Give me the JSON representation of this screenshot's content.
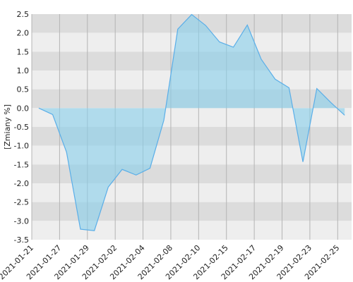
{
  "chart_data": {
    "type": "area",
    "y_label": "[Zmiany %]",
    "categories": [
      "2021-01-21",
      null,
      "2021-01-27",
      null,
      "2021-01-29",
      null,
      "2021-02-02",
      null,
      "2021-02-04",
      null,
      "2021-02-08",
      null,
      "2021-02-10",
      null,
      "2021-02-15",
      null,
      "2021-02-17",
      null,
      "2021-02-19",
      null,
      "2021-02-23",
      null,
      "2021-02-25"
    ],
    "values": [
      0.0,
      -0.17,
      -1.17,
      -3.22,
      -3.26,
      -2.1,
      -1.63,
      -1.78,
      -1.6,
      -0.32,
      2.1,
      2.49,
      2.2,
      1.76,
      1.62,
      2.21,
      1.3,
      0.77,
      0.54,
      -1.43,
      0.52,
      0.15,
      -0.19
    ],
    "color": "#5aaee8",
    "ylim": [
      -3.5,
      2.5
    ],
    "yticks": [
      {
        "value": 2.5,
        "label": "2.5"
      },
      {
        "value": 2.0,
        "label": "2.0"
      },
      {
        "value": 1.5,
        "label": "1.5"
      },
      {
        "value": 1.0,
        "label": "1.0"
      },
      {
        "value": 0.5,
        "label": "0.5"
      },
      {
        "value": 0.0,
        "label": "0.0"
      },
      {
        "value": -0.5,
        "label": "-0.5"
      },
      {
        "value": -1.0,
        "label": "-1.0"
      },
      {
        "value": -1.5,
        "label": "-1.5"
      },
      {
        "value": -2.0,
        "label": "-2.0"
      },
      {
        "value": -2.5,
        "label": "-2.5"
      },
      {
        "value": -3.0,
        "label": "-3.0"
      },
      {
        "value": -3.5,
        "label": "-3.5"
      }
    ],
    "grid": true
  }
}
